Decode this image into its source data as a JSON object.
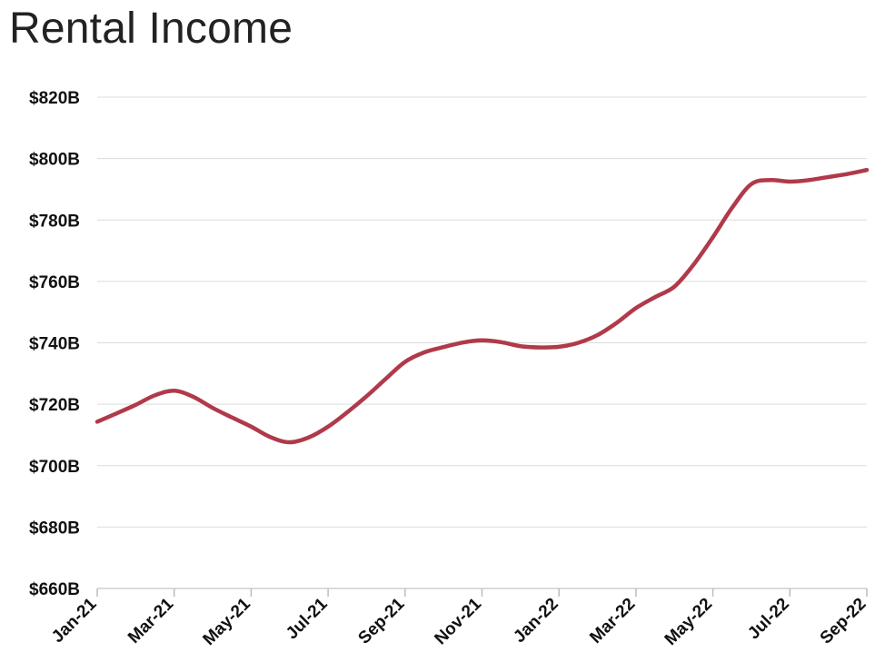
{
  "chart_data": {
    "type": "line",
    "title": "Rental Income",
    "xlabel": "",
    "ylabel": "",
    "ylim": [
      660,
      820
    ],
    "yticks": [
      660,
      680,
      700,
      720,
      740,
      760,
      780,
      800,
      820
    ],
    "ytick_labels": [
      "$660B",
      "$680B",
      "$700B",
      "$720B",
      "$740B",
      "$760B",
      "$780B",
      "$800B",
      "$820B"
    ],
    "xticks": [
      "Jan-21",
      "Mar-21",
      "May-21",
      "Jul-21",
      "Sep-21",
      "Nov-21",
      "Jan-22",
      "Mar-22",
      "May-22",
      "Jul-22",
      "Sep-22"
    ],
    "grid": true,
    "legend": "none",
    "color": "#b03a4a",
    "series": [
      {
        "x": [
          0,
          0.5,
          1,
          1.5,
          2,
          2.5,
          3,
          3.5,
          4,
          4.5,
          5,
          5.5,
          6,
          6.5,
          7,
          7.5,
          8,
          8.5,
          9,
          9.5,
          10,
          10.5,
          11,
          11.5,
          12,
          12.5,
          13,
          13.5,
          14,
          14.5,
          15,
          15.5,
          16,
          16.5,
          17,
          17.5,
          18,
          18.5,
          19,
          19.5,
          20
        ],
        "values": [
          714.3,
          717.0,
          719.8,
          722.9,
          724.4,
          722.4,
          718.8,
          715.7,
          712.7,
          709.3,
          707.6,
          709.2,
          712.7,
          717.4,
          722.6,
          728.3,
          733.8,
          736.9,
          738.6,
          740.1,
          740.8,
          740.2,
          738.9,
          738.5,
          738.7,
          740.0,
          742.5,
          746.5,
          751.3,
          754.9,
          758.3,
          765.5,
          774.4,
          784.0,
          791.7,
          793.0,
          792.5,
          793.0,
          794.0,
          795.0,
          796.3
        ]
      }
    ]
  }
}
